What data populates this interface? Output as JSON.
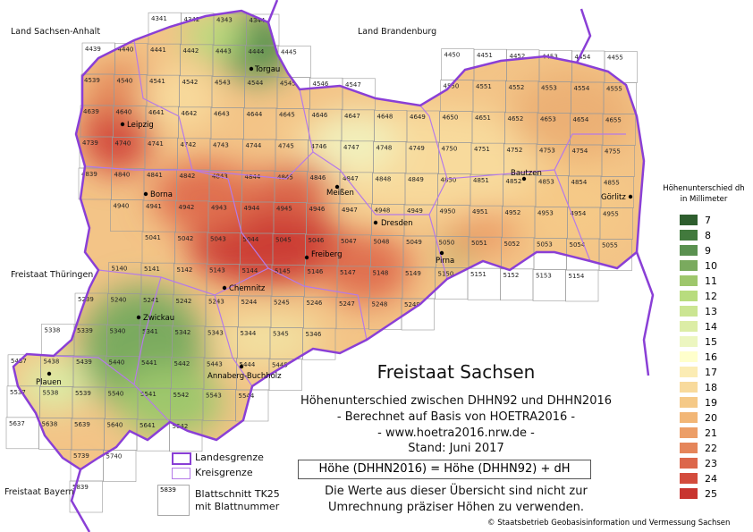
{
  "neighbors": {
    "sachsen_anhalt": "Land Sachsen-Anhalt",
    "brandenburg": "Land Brandenburg",
    "thueringen": "Freistaat Thüringen",
    "bayern": "Freistaat Bayern"
  },
  "tile_rows": [
    {
      "row": 43,
      "cols": [
        [
          41,
          44
        ]
      ]
    },
    {
      "row": 44,
      "cols": [
        [
          39,
          45
        ],
        [
          50,
          55
        ]
      ]
    },
    {
      "row": 45,
      "cols": [
        [
          39,
          47
        ],
        [
          50,
          55
        ]
      ]
    },
    {
      "row": 46,
      "cols": [
        [
          39,
          55
        ]
      ]
    },
    {
      "row": 47,
      "cols": [
        [
          39,
          55
        ]
      ]
    },
    {
      "row": 48,
      "cols": [
        [
          39,
          55
        ]
      ]
    },
    {
      "row": 49,
      "cols": [
        [
          40,
          55
        ]
      ]
    },
    {
      "row": 50,
      "cols": [
        [
          41,
          55
        ]
      ]
    },
    {
      "row": 51,
      "cols": [
        [
          40,
          54
        ]
      ]
    },
    {
      "row": 52,
      "cols": [
        [
          39,
          49
        ]
      ]
    },
    {
      "row": 53,
      "cols": [
        [
          38,
          46
        ]
      ]
    },
    {
      "row": 54,
      "cols": [
        [
          37,
          45
        ]
      ]
    },
    {
      "row": 55,
      "cols": [
        [
          37,
          44
        ]
      ]
    },
    {
      "row": 56,
      "cols": [
        [
          37,
          42
        ]
      ]
    },
    {
      "row": 57,
      "cols": [
        [
          39,
          40
        ]
      ]
    },
    {
      "row": 58,
      "cols": [
        [
          39,
          39
        ]
      ]
    }
  ],
  "cities": [
    {
      "name": "Torgau"
    },
    {
      "name": "Leipzig"
    },
    {
      "name": "Borna"
    },
    {
      "name": "Meißen"
    },
    {
      "name": "Dresden"
    },
    {
      "name": "Bautzen"
    },
    {
      "name": "Görlitz"
    },
    {
      "name": "Pirna"
    },
    {
      "name": "Freiberg"
    },
    {
      "name": "Chemnitz"
    },
    {
      "name": "Zwickau"
    },
    {
      "name": "Plauen"
    },
    {
      "name": "Annaberg-Buchholz"
    }
  ],
  "title": {
    "main": "Freistaat Sachsen",
    "line1": "Höhenunterschied zwischen DHHN92 und DHHN2016",
    "line2": "- Berechnet auf Basis von HOETRA2016 -",
    "line3": "- www.hoetra2016.nrw.de -",
    "line4": "Stand: Juni 2017",
    "formula": "Höhe (DHHN2016) = Höhe (DHHN92) + dH",
    "note1": "Die Werte aus dieser Übersicht sind nicht zur",
    "note2": "Umrechnung präziser Höhen zu verwenden."
  },
  "map_legend": {
    "landesgrenze": "Landesgrenze",
    "kreisgrenze": "Kreisgrenze",
    "tile_example": "5839",
    "blattschnitt1": "Blattschnitt TK25",
    "blattschnitt2": "mit Blattnummer",
    "border_color": "#8a3fd6",
    "kreis_color": "#b57ae8"
  },
  "legend": {
    "title1": "Höhenunterschied dh",
    "title2": "in Millimeter",
    "items": [
      {
        "value": "7",
        "color": "#2e5e2e"
      },
      {
        "value": "8",
        "color": "#427a3d"
      },
      {
        "value": "9",
        "color": "#5a9150"
      },
      {
        "value": "10",
        "color": "#7aaa5e"
      },
      {
        "value": "11",
        "color": "#9ec76c"
      },
      {
        "value": "12",
        "color": "#b8dc7e"
      },
      {
        "value": "13",
        "color": "#cbe592"
      },
      {
        "value": "14",
        "color": "#dcedA6"
      },
      {
        "value": "15",
        "color": "#ecf6c0"
      },
      {
        "value": "16",
        "color": "#ffffcc"
      },
      {
        "value": "17",
        "color": "#fbecb4"
      },
      {
        "value": "18",
        "color": "#f8da9c"
      },
      {
        "value": "19",
        "color": "#f5c987"
      },
      {
        "value": "20",
        "color": "#f2b676"
      },
      {
        "value": "21",
        "color": "#ec9e67"
      },
      {
        "value": "22",
        "color": "#e5855a"
      },
      {
        "value": "23",
        "color": "#dc674b"
      },
      {
        "value": "24",
        "color": "#d34c3d"
      },
      {
        "value": "25",
        "color": "#c83530"
      }
    ]
  },
  "copyright": "© Staatsbetrieb Geobasisinformation und Vermessung Sachsen"
}
